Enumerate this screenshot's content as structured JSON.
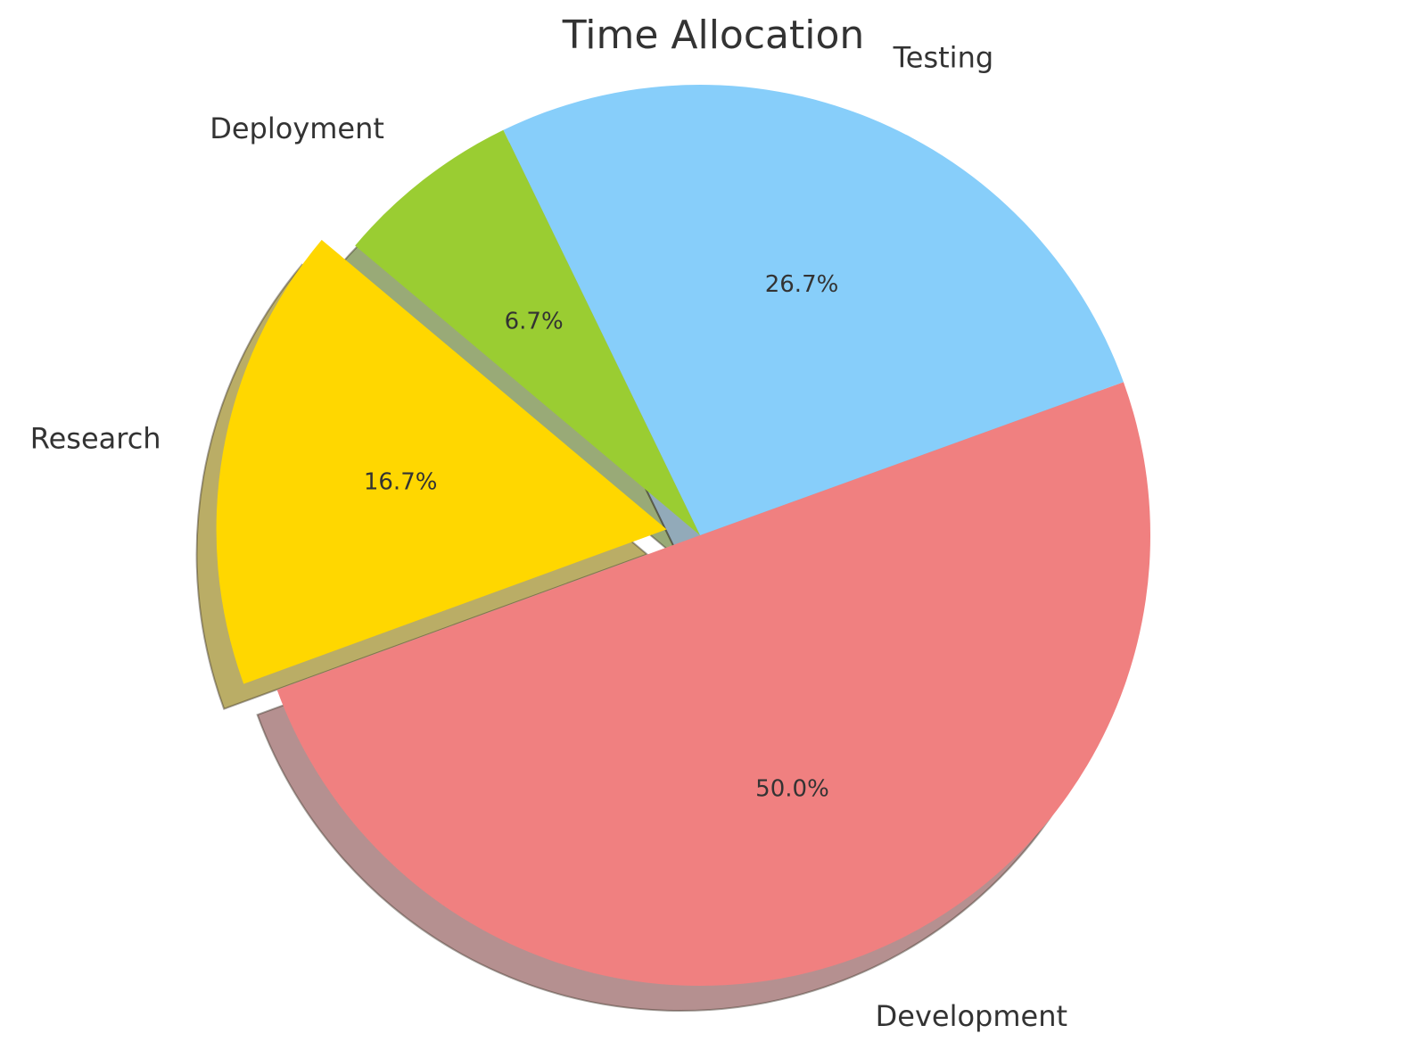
{
  "chart_data": {
    "type": "pie",
    "title": "Time Allocation",
    "categories": [
      "Research",
      "Development",
      "Testing",
      "Deployment"
    ],
    "values": [
      16.7,
      50.0,
      26.7,
      6.7
    ],
    "value_labels": [
      "16.7%",
      "50.0%",
      "26.7%",
      "6.7%"
    ],
    "colors": [
      "#ffd700",
      "#f08080",
      "#87cefa",
      "#9acd32"
    ],
    "exploded": [
      "Research"
    ],
    "shadow": true,
    "start_angle_deg": 140,
    "direction": "counterclockwise"
  }
}
